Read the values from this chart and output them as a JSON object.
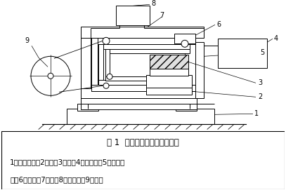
{
  "title_line": "图 1  电火花线切割加工示意图",
  "caption_line1": "1坐标工作台，2夹具，3工件，4脉冲电源，5工具电极",
  "caption_line2": "丝，6导向轮，7支架，8工作液筒，9储丝筒",
  "bg_color": "#ffffff",
  "line_color": "#000000",
  "title_fontsize": 8.5,
  "caption_fontsize": 7.5,
  "fig_width": 4.07,
  "fig_height": 2.71,
  "dpi": 100
}
